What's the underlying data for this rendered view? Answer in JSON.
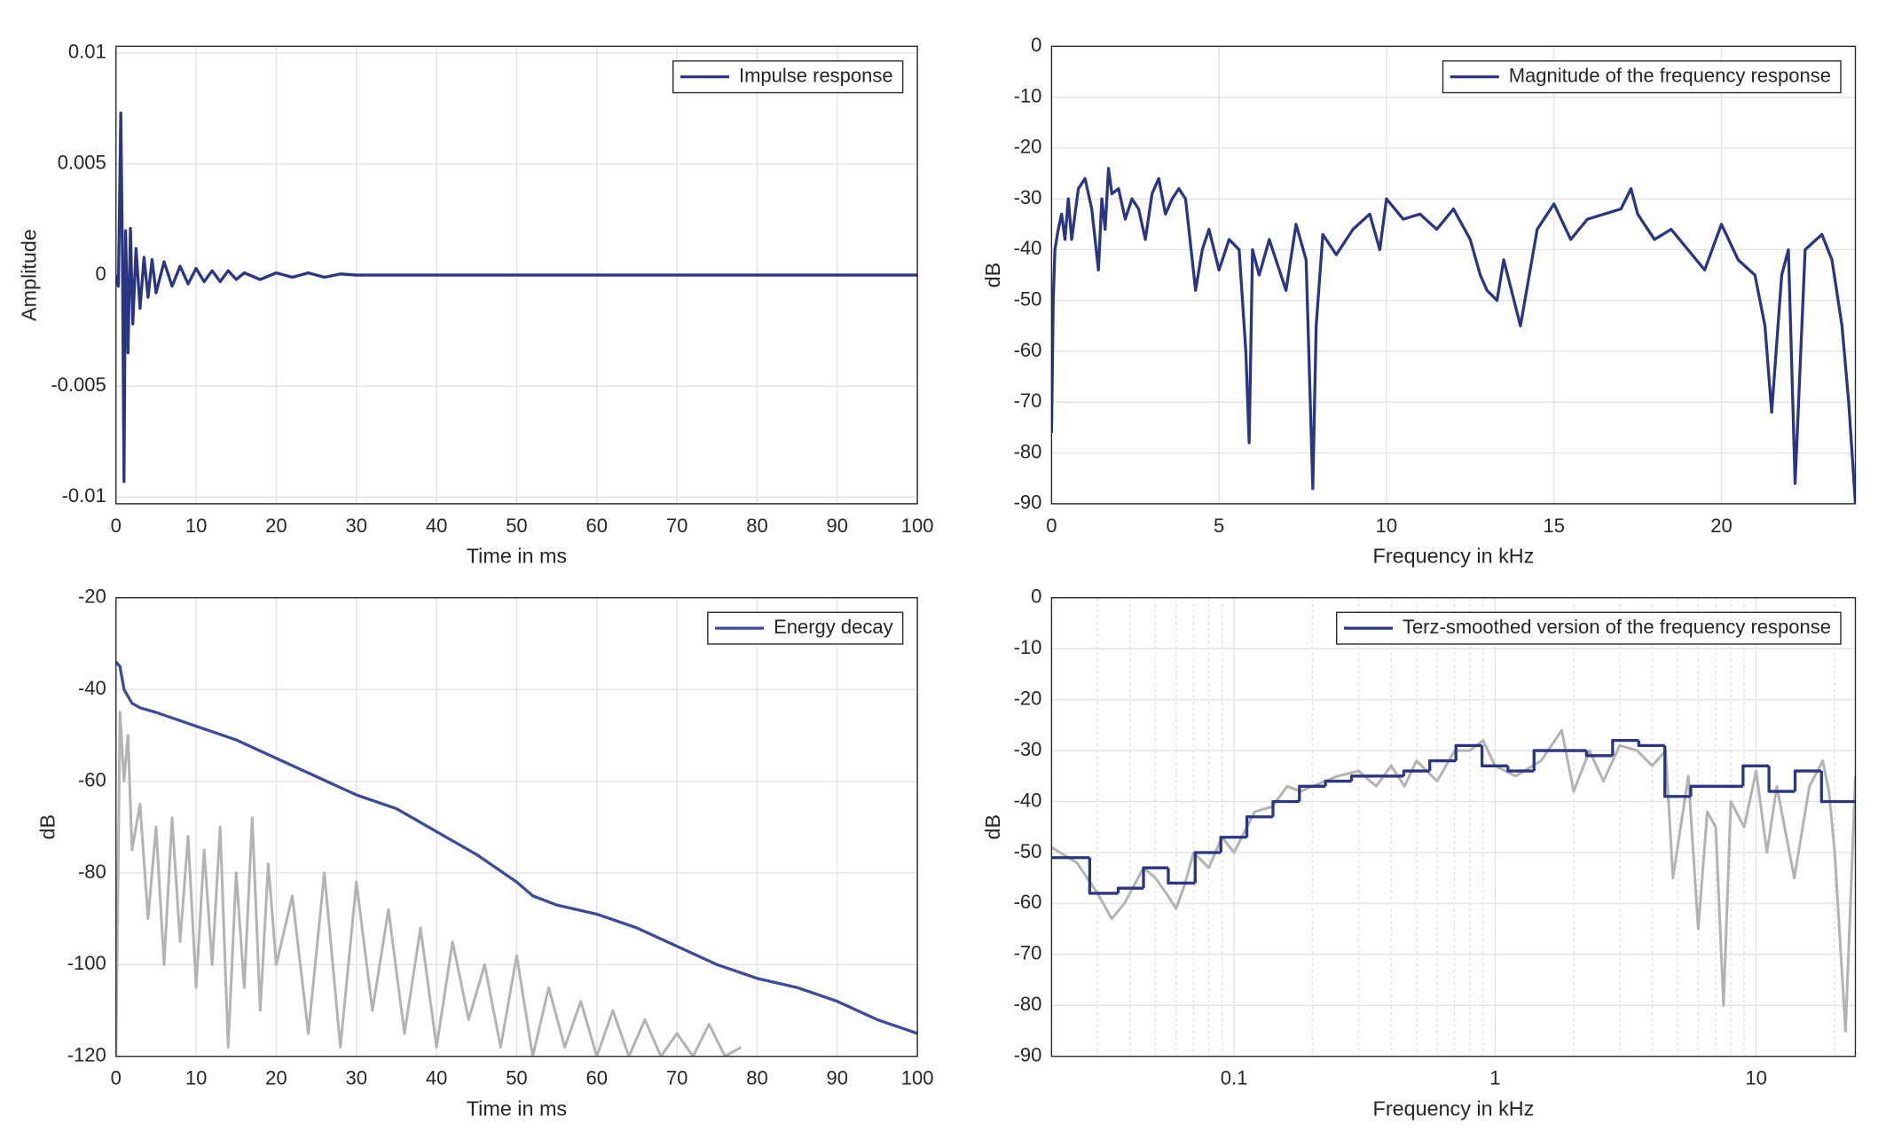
{
  "chart_data": [
    {
      "type": "line",
      "xlabel": "Time in ms",
      "ylabel": "Amplitude",
      "xlim": [
        0,
        100
      ],
      "ylim": [
        -0.0103,
        0.0103
      ],
      "xticks": [
        0,
        10,
        20,
        30,
        40,
        50,
        60,
        70,
        80,
        90,
        100
      ],
      "yticks": [
        -0.01,
        -0.005,
        0,
        0.005,
        0.01
      ],
      "grid": true,
      "legend": "upper right",
      "series": [
        {
          "name": "Impulse response",
          "color": "#2a3681",
          "x": [
            0,
            0.3,
            0.6,
            0.8,
            1.0,
            1.2,
            1.5,
            1.8,
            2.1,
            2.5,
            3,
            3.5,
            4,
            4.5,
            5,
            6,
            7,
            8,
            9,
            10,
            11,
            12,
            13,
            14,
            15,
            16,
            18,
            20,
            22,
            24,
            26,
            28,
            30,
            35,
            40,
            50,
            60,
            70,
            80,
            90,
            100
          ],
          "values": [
            0,
            -0.0005,
            0.0073,
            0.001,
            -0.0093,
            0.002,
            -0.0035,
            0.0021,
            -0.0022,
            0.0012,
            -0.0015,
            0.0008,
            -0.001,
            0.0007,
            -0.0008,
            0.0006,
            -0.0005,
            0.0004,
            -0.0004,
            0.0003,
            -0.0003,
            0.0002,
            -0.0003,
            0.0002,
            -0.0002,
            0.0001,
            -0.0002,
            0.0001,
            -0.0001,
            0.0001,
            -0.0001,
            5e-05,
            0,
            0,
            0,
            0,
            0,
            0,
            0,
            0,
            0
          ]
        }
      ]
    },
    {
      "type": "line",
      "xlabel": "Frequency in kHz",
      "ylabel": "dB",
      "xlim": [
        0,
        24
      ],
      "ylim": [
        -90,
        0
      ],
      "xticks": [
        0,
        5,
        10,
        15,
        20
      ],
      "yticks": [
        -90,
        -80,
        -70,
        -60,
        -50,
        -40,
        -30,
        -20,
        -10,
        0
      ],
      "grid": true,
      "legend": "upper right",
      "series": [
        {
          "name": "Magnitude of the frequency response",
          "color": "#2a3681",
          "x": [
            0,
            0.05,
            0.1,
            0.2,
            0.3,
            0.4,
            0.5,
            0.6,
            0.8,
            1.0,
            1.2,
            1.4,
            1.5,
            1.6,
            1.7,
            1.8,
            2.0,
            2.2,
            2.4,
            2.6,
            2.8,
            3.0,
            3.2,
            3.4,
            3.6,
            3.8,
            4.0,
            4.3,
            4.5,
            4.7,
            5.0,
            5.3,
            5.6,
            5.8,
            5.9,
            6.0,
            6.2,
            6.5,
            7.0,
            7.3,
            7.6,
            7.8,
            7.9,
            8.1,
            8.5,
            9.0,
            9.5,
            9.8,
            10.0,
            10.5,
            11,
            11.5,
            12,
            12.5,
            12.8,
            13.0,
            13.3,
            13.5,
            14,
            14.5,
            15,
            15.5,
            16,
            16.5,
            17,
            17.3,
            17.5,
            18,
            18.5,
            19,
            19.5,
            20,
            20.5,
            21,
            21.3,
            21.5,
            21.8,
            22,
            22.2,
            22.5,
            23,
            23.3,
            23.6,
            23.8,
            24
          ],
          "values": [
            -76,
            -50,
            -40,
            -36,
            -33,
            -38,
            -30,
            -38,
            -28,
            -26,
            -32,
            -44,
            -30,
            -36,
            -24,
            -29,
            -28,
            -34,
            -30,
            -32,
            -38,
            -29,
            -26,
            -33,
            -30,
            -28,
            -30,
            -48,
            -40,
            -36,
            -44,
            -38,
            -40,
            -60,
            -78,
            -40,
            -45,
            -38,
            -48,
            -35,
            -42,
            -87,
            -55,
            -37,
            -41,
            -36,
            -33,
            -40,
            -30,
            -34,
            -33,
            -36,
            -32,
            -38,
            -45,
            -48,
            -50,
            -42,
            -55,
            -36,
            -31,
            -38,
            -34,
            -33,
            -32,
            -28,
            -33,
            -38,
            -36,
            -40,
            -44,
            -35,
            -42,
            -45,
            -55,
            -72,
            -45,
            -40,
            -86,
            -40,
            -37,
            -42,
            -55,
            -70,
            -90
          ]
        }
      ]
    },
    {
      "type": "line",
      "xlabel": "Time in ms",
      "ylabel": "dB",
      "xlim": [
        0,
        100
      ],
      "ylim": [
        -120,
        -20
      ],
      "xticks": [
        0,
        10,
        20,
        30,
        40,
        50,
        60,
        70,
        80,
        90,
        100
      ],
      "yticks": [
        -120,
        -100,
        -80,
        -60,
        -40,
        -20
      ],
      "grid": true,
      "legend": "upper right",
      "series": [
        {
          "color": "#b3b3b3",
          "x": [
            0,
            0.5,
            1,
            1.5,
            2,
            3,
            4,
            5,
            6,
            7,
            8,
            9,
            10,
            11,
            12,
            13,
            14,
            15,
            16,
            17,
            18,
            19,
            20,
            22,
            24,
            26,
            28,
            30,
            32,
            34,
            36,
            38,
            40,
            42,
            44,
            46,
            48,
            50,
            52,
            54,
            56,
            58,
            60,
            62,
            64,
            66,
            68,
            70,
            72,
            74,
            76,
            78
          ],
          "values": [
            -120,
            -45,
            -60,
            -50,
            -75,
            -65,
            -90,
            -70,
            -100,
            -68,
            -95,
            -72,
            -105,
            -75,
            -100,
            -70,
            -118,
            -80,
            -105,
            -68,
            -110,
            -78,
            -100,
            -85,
            -115,
            -80,
            -118,
            -82,
            -110,
            -88,
            -115,
            -92,
            -118,
            -95,
            -112,
            -100,
            -118,
            -98,
            -120,
            -105,
            -118,
            -108,
            -120,
            -110,
            -120,
            -112,
            -120,
            -115,
            -120,
            -113,
            -120,
            -118
          ]
        },
        {
          "name": "Energy decay",
          "color": "#3b4a99",
          "x": [
            0,
            0.5,
            1,
            2,
            3,
            5,
            10,
            15,
            20,
            25,
            30,
            35,
            40,
            45,
            50,
            52,
            55,
            60,
            65,
            70,
            75,
            80,
            85,
            90,
            95,
            100
          ],
          "values": [
            -34,
            -35,
            -40,
            -43,
            -44,
            -45,
            -48,
            -51,
            -55,
            -59,
            -63,
            -66,
            -71,
            -76,
            -82,
            -85,
            -87,
            -89,
            -92,
            -96,
            -100,
            -103,
            -105,
            -108,
            -112,
            -115
          ]
        }
      ]
    },
    {
      "type": "line",
      "xlabel": "Frequency in kHz",
      "ylabel": "dB",
      "xscale": "log",
      "xlim": [
        0.02,
        24
      ],
      "ylim": [
        -90,
        0
      ],
      "xticks": [
        0.1,
        1,
        10
      ],
      "xminorticks": [
        0.02,
        0.03,
        0.04,
        0.05,
        0.06,
        0.07,
        0.08,
        0.09,
        0.2,
        0.3,
        0.4,
        0.5,
        0.6,
        0.7,
        0.8,
        0.9,
        2,
        3,
        4,
        5,
        6,
        7,
        8,
        9,
        20
      ],
      "yticks": [
        -90,
        -80,
        -70,
        -60,
        -50,
        -40,
        -30,
        -20,
        -10,
        0
      ],
      "grid": true,
      "legend": "upper right",
      "series": [
        {
          "color": "#b3b3b3",
          "x": [
            0.02,
            0.025,
            0.03,
            0.034,
            0.038,
            0.045,
            0.05,
            0.055,
            0.06,
            0.065,
            0.07,
            0.08,
            0.09,
            0.1,
            0.12,
            0.14,
            0.16,
            0.18,
            0.2,
            0.25,
            0.3,
            0.35,
            0.4,
            0.45,
            0.5,
            0.6,
            0.7,
            0.8,
            0.9,
            1.0,
            1.2,
            1.5,
            1.8,
            2.0,
            2.3,
            2.6,
            3,
            3.5,
            4,
            4.5,
            4.8,
            5.5,
            6,
            6.5,
            7,
            7.5,
            8,
            9,
            10,
            11,
            12,
            14,
            16,
            18,
            19,
            20,
            22,
            24
          ],
          "values": [
            -49,
            -52,
            -58,
            -63,
            -60,
            -53,
            -55,
            -58,
            -61,
            -56,
            -50,
            -53,
            -47,
            -50,
            -42,
            -41,
            -37,
            -38,
            -37,
            -35,
            -34,
            -37,
            -33,
            -37,
            -32,
            -36,
            -30,
            -30,
            -28,
            -33,
            -35,
            -32,
            -26,
            -38,
            -30,
            -36,
            -29,
            -30,
            -33,
            -30,
            -55,
            -35,
            -65,
            -42,
            -45,
            -80,
            -40,
            -45,
            -34,
            -50,
            -37,
            -55,
            -37,
            -32,
            -38,
            -50,
            -85,
            -35
          ]
        },
        {
          "name": "Terz-smoothed version of the frequency response",
          "color": "#2a3681",
          "step": "post",
          "x": [
            0.02,
            0.028,
            0.036,
            0.045,
            0.056,
            0.071,
            0.089,
            0.112,
            0.141,
            0.178,
            0.224,
            0.282,
            0.355,
            0.447,
            0.562,
            0.708,
            0.891,
            1.12,
            1.41,
            1.78,
            2.24,
            2.82,
            3.55,
            4.47,
            5.62,
            7.08,
            8.91,
            11.2,
            14.1,
            17.8
          ],
          "values": [
            -51,
            -58,
            -57,
            -53,
            -56,
            -50,
            -47,
            -43,
            -40,
            -37,
            -36,
            -35,
            -35,
            -34,
            -32,
            -29,
            -33,
            -34,
            -30,
            -30,
            -31,
            -28,
            -29,
            -39,
            -37,
            -37,
            -33,
            -38,
            -34,
            -40
          ]
        }
      ]
    }
  ]
}
